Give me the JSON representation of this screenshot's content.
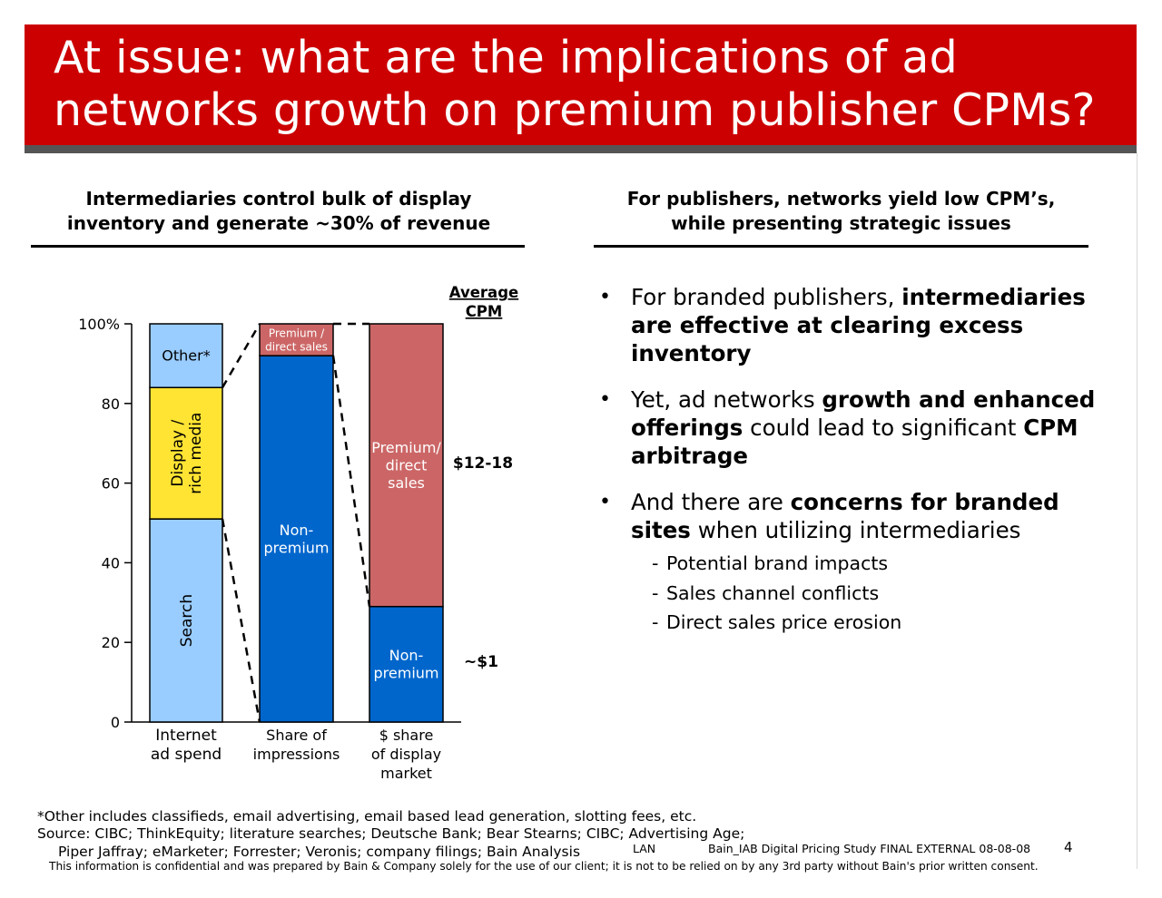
{
  "title": {
    "line1": "At issue: what are the implications of ad",
    "line2": "networks growth on premium publisher CPMs?"
  },
  "left_column": {
    "heading_line1": "Intermediaries control bulk of display",
    "heading_line2": "inventory and generate ~30% of revenue"
  },
  "right_column": {
    "heading_line1": "For publishers, networks yield low CPM’s,",
    "heading_line2": "while presenting strategic issues",
    "bullets": [
      {
        "parts": [
          {
            "text": "For branded publishers, ",
            "bold": false
          },
          {
            "text": "intermediaries are effective at clearing excess inventory",
            "bold": true
          }
        ]
      },
      {
        "parts": [
          {
            "text": "Yet, ad networks ",
            "bold": false
          },
          {
            "text": "growth and enhanced offerings",
            "bold": true
          },
          {
            "text": " could lead to significant ",
            "bold": false
          },
          {
            "text": "CPM arbitrage",
            "bold": true
          }
        ]
      },
      {
        "parts": [
          {
            "text": "And there are ",
            "bold": false
          },
          {
            "text": "concerns for branded sites",
            "bold": true
          },
          {
            "text": " when utilizing intermediaries",
            "bold": false
          }
        ]
      }
    ],
    "sub_bullets": [
      "Potential brand impacts",
      "Sales channel conflicts",
      "Direct sales price erosion"
    ]
  },
  "chart_data": {
    "type": "bar",
    "stacked": true,
    "categories": [
      [
        "Internet",
        "ad spend"
      ],
      [
        "Share of",
        "impressions"
      ],
      [
        "$ share",
        "of display",
        "market"
      ]
    ],
    "segments": [
      [
        {
          "label": [
            "Search"
          ],
          "value": 51,
          "color": "#99ccff",
          "rotated": true,
          "text_color": "#000000"
        },
        {
          "label": [
            "Display /",
            "rich media"
          ],
          "value": 33,
          "color": "#ffe433",
          "rotated": true,
          "text_color": "#000000"
        },
        {
          "label": [
            "Other*"
          ],
          "value": 16,
          "color": "#99ccff",
          "rotated": false,
          "text_color": "#000000"
        }
      ],
      [
        {
          "label": [
            "Non-",
            "premium"
          ],
          "value": 92,
          "color": "#0066cc",
          "rotated": false,
          "text_color": "#ffffff"
        },
        {
          "label": [
            "Premium /",
            "direct sales"
          ],
          "value": 8,
          "color": "#cc6666",
          "rotated": false,
          "text_color": "#ffffff",
          "small": true
        }
      ],
      [
        {
          "label": [
            "Non-",
            "premium"
          ],
          "value": 29,
          "color": "#0066cc",
          "rotated": false,
          "text_color": "#ffffff"
        },
        {
          "label": [
            "Premium/",
            "direct",
            "sales"
          ],
          "value": 71,
          "color": "#cc6666",
          "rotated": false,
          "text_color": "#ffffff"
        }
      ]
    ],
    "y_ticks": [
      0,
      20,
      40,
      60,
      80,
      100
    ],
    "y_tick_labels": [
      "0",
      "20",
      "40",
      "60",
      "80",
      "100%"
    ],
    "ylim": [
      0,
      100
    ],
    "cpm_header": [
      "Average",
      "CPM"
    ],
    "cpm_labels": [
      {
        "text": "$12-18",
        "series": "premium"
      },
      {
        "text": "~$1",
        "series": "non-premium"
      }
    ]
  },
  "footnotes": {
    "line1": "*Other includes classifieds, email advertising, email based lead generation, slotting fees, etc.",
    "line2": "Source: CIBC; ThinkEquity; literature searches; Deutsche Bank; Bear Stearns; CIBC; Advertising Age;",
    "line3": "Piper Jaffray; eMarketer; Forrester;  Veronis; company filings; Bain Analysis",
    "lan": "LAN",
    "file": "Bain_IAB Digital Pricing Study FINAL EXTERNAL 08-08-08",
    "page": "4",
    "confidential": "This information is confidential and was prepared by Bain & Company solely for the use of our client; it is not to be relied on by any 3rd party without Bain's prior written consent."
  }
}
